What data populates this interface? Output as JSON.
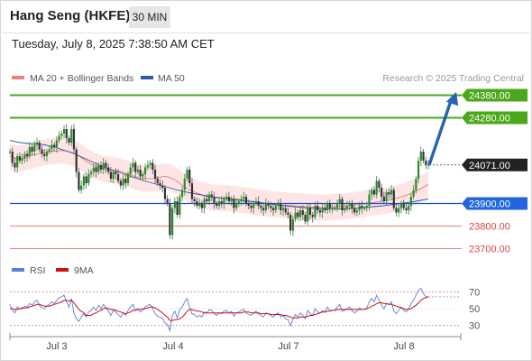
{
  "header": {
    "title": "Hang Seng (HKFE)",
    "interval": "30 MIN",
    "datetime": "Tuesday, July 8, 2025 7:38:50 AM CET"
  },
  "colors": {
    "resistance": "#4aa81a",
    "support": "#1b4fd6",
    "pivot_dark": "#222222",
    "minor_support": "#f08080",
    "bollinger_fill": "#fde0e0",
    "ma20": "#e07070",
    "ma50": "#2b5aa8",
    "arrow": "#2a64b0",
    "rsi": "#5a7fd8",
    "rsi_ma": "#cc1111",
    "candle": "#2a8a2a"
  },
  "chart_data": [
    {
      "type": "candlestick",
      "legend": [
        {
          "name": "MA 20 + Bollinger Bands",
          "color": "#f08080"
        },
        {
          "name": "MA 50",
          "color": "#2b5aa8"
        }
      ],
      "credit": "Research © 2025 Trading Central",
      "x_ticks": [
        "Jul 3",
        "Jul 4",
        "Jul 7",
        "Jul 8"
      ],
      "ylim": [
        23650,
        24450
      ],
      "levels": [
        {
          "value": 24380,
          "label": "24380.00",
          "kind": "resistance"
        },
        {
          "value": 24280,
          "label": "24280.00",
          "kind": "resistance"
        },
        {
          "value": 24071,
          "label": "24071.00",
          "kind": "pivot"
        },
        {
          "value": 23900,
          "label": "23900.00",
          "kind": "support"
        },
        {
          "value": 23800,
          "label": "23800.00",
          "kind": "minor_support"
        },
        {
          "value": 23700,
          "label": "23700.00",
          "kind": "minor_support"
        }
      ],
      "close": [
        24130,
        24080,
        24060,
        24110,
        24090,
        24100,
        24120,
        24110,
        24150,
        24130,
        24160,
        24170,
        24140,
        24120,
        24110,
        24130,
        24140,
        24160,
        24150,
        24180,
        24200,
        24210,
        24230,
        24190,
        24170,
        24230,
        24140,
        24040,
        23960,
        23980,
        24020,
        23990,
        24030,
        24040,
        24060,
        24040,
        24070,
        24050,
        24080,
        24060,
        24040,
        24010,
        24040,
        24030,
        24000,
        23980,
        24010,
        23990,
        24030,
        24060,
        24080,
        24040,
        24050,
        24020,
        24030,
        24060,
        24070,
        24080,
        24050,
        24010,
        23990,
        23980,
        23970,
        23920,
        23900,
        23760,
        23880,
        23910,
        23850,
        23930,
        23960,
        24010,
        24050,
        23990,
        23920,
        23910,
        23890,
        23900,
        23880,
        23920,
        23910,
        23940,
        23930,
        23900,
        23890,
        23910,
        23900,
        23920,
        23930,
        23910,
        23920,
        23880,
        23900,
        23910,
        23920,
        23930,
        23900,
        23890,
        23880,
        23900,
        23910,
        23890,
        23880,
        23870,
        23900,
        23890,
        23880,
        23870,
        23890,
        23900,
        23870,
        23880,
        23860,
        23850,
        23780,
        23830,
        23860,
        23840,
        23870,
        23850,
        23820,
        23880,
        23850,
        23840,
        23890,
        23870,
        23860,
        23880,
        23870,
        23900,
        23880,
        23880,
        23880,
        23900,
        23920,
        23870,
        23880,
        23890,
        23900,
        23880,
        23860,
        23870,
        23890,
        23880,
        23880,
        23890,
        23940,
        23960,
        23940,
        24000,
        23970,
        23930,
        23910,
        23950,
        23940,
        23960,
        23880,
        23860,
        23880,
        23900,
        23880,
        23870,
        23890,
        23930,
        23960,
        24010,
        24090,
        24130,
        24090,
        24070,
        24071
      ],
      "ma20": [
        24110,
        24105,
        24100,
        24100,
        24102,
        24105,
        24110,
        24115,
        24118,
        24122,
        24125,
        24128,
        24130,
        24132,
        24133,
        24135,
        24135,
        24134,
        24130,
        24125,
        24118,
        24110,
        24100,
        24090,
        24080,
        24072,
        24065,
        24060,
        24055,
        24052,
        24050,
        24048,
        24046,
        24044,
        24040,
        24035,
        24030,
        24025,
        24020,
        24015,
        24012,
        24010,
        24010,
        24010,
        24012,
        24015,
        24018,
        24020,
        24018,
        24012,
        24005,
        23995,
        23985,
        23975,
        23965,
        23958,
        23952,
        23945,
        23940,
        23935,
        23930,
        23928,
        23926,
        23925,
        23925,
        23924,
        23923,
        23922,
        23920,
        23918,
        23916,
        23914,
        23912,
        23910,
        23908,
        23906,
        23904,
        23902,
        23900,
        23898,
        23896,
        23895,
        23894,
        23893,
        23892,
        23891,
        23890,
        23889,
        23888,
        23887,
        23886,
        23885,
        23884,
        23883,
        23882,
        23882,
        23882,
        23883,
        23884,
        23885,
        23886,
        23887,
        23888,
        23890,
        23892,
        23894,
        23896,
        23898,
        23900,
        23902,
        23904,
        23906,
        23908,
        23910,
        23912,
        23915,
        23918,
        23922,
        23926,
        23930,
        23935,
        23940,
        23946,
        23952,
        23960,
        23968,
        23976,
        23985
      ],
      "ma50": [
        24180,
        24175,
        24170,
        24168,
        24166,
        24165,
        24163,
        24160,
        24155,
        24150,
        24143,
        24135,
        24128,
        24120,
        24110,
        24100,
        24090,
        24080,
        24070,
        24060,
        24052,
        24045,
        24038,
        24030,
        24022,
        24015,
        24008,
        24000,
        23994,
        23988,
        23982,
        23976,
        23970,
        23964,
        23958,
        23953,
        23948,
        23944,
        23940,
        23936,
        23932,
        23929,
        23926,
        23923,
        23920,
        23918,
        23915,
        23912,
        23910,
        23908,
        23905,
        23902,
        23899,
        23896,
        23893,
        23890,
        23888,
        23886,
        23884,
        23882,
        23880,
        23879,
        23878,
        23877,
        23876,
        23876,
        23876,
        23877,
        23878,
        23879,
        23880,
        23882,
        23884,
        23886,
        23888,
        23890,
        23893,
        23896,
        23899,
        23902,
        23905,
        23908,
        23912,
        23916,
        23920
      ]
    },
    {
      "type": "line",
      "legend": [
        {
          "name": "RSI",
          "color": "#5a7fd8"
        },
        {
          "name": "9MA",
          "color": "#cc1111"
        }
      ],
      "y_ticks": [
        70,
        50,
        30
      ],
      "ylim": [
        20,
        80
      ],
      "rsi": [
        55,
        48,
        45,
        52,
        50,
        51,
        53,
        52,
        56,
        54,
        58,
        60,
        54,
        51,
        50,
        53,
        55,
        58,
        56,
        60,
        63,
        64,
        66,
        58,
        52,
        62,
        45,
        38,
        35,
        40,
        44,
        40,
        46,
        48,
        52,
        48,
        54,
        50,
        55,
        51,
        47,
        42,
        48,
        46,
        43,
        40,
        45,
        42,
        48,
        52,
        55,
        48,
        50,
        46,
        48,
        52,
        54,
        55,
        50,
        44,
        41,
        40,
        39,
        33,
        31,
        24,
        42,
        47,
        39,
        49,
        52,
        58,
        62,
        52,
        44,
        43,
        40,
        42,
        40,
        46,
        45,
        49,
        48,
        44,
        42,
        45,
        44,
        47,
        48,
        45,
        47,
        41,
        45,
        46,
        48,
        49,
        45,
        43,
        42,
        45,
        47,
        44,
        42,
        40,
        45,
        44,
        42,
        40,
        43,
        45,
        40,
        42,
        38,
        37,
        30,
        38,
        43,
        40,
        45,
        42,
        38,
        48,
        44,
        42,
        50,
        46,
        45,
        48,
        46,
        52,
        48,
        48,
        48,
        52,
        55,
        47,
        48,
        50,
        52,
        48,
        45,
        47,
        51,
        49,
        49,
        51,
        58,
        62,
        58,
        66,
        60,
        54,
        50,
        56,
        55,
        58,
        47,
        44,
        48,
        52,
        48,
        46,
        50,
        56,
        60,
        66,
        72,
        74,
        68,
        64,
        64
      ],
      "rsi_ma": [
        50,
        50,
        49,
        49,
        50,
        50,
        51,
        51,
        52,
        53,
        54,
        55,
        55,
        54,
        53,
        53,
        53,
        54,
        55,
        56,
        57,
        58,
        60,
        60,
        59,
        60,
        57,
        53,
        49,
        47,
        45,
        42,
        42,
        42,
        44,
        45,
        47,
        48,
        50,
        51,
        50,
        49,
        49,
        48,
        47,
        46,
        45,
        44,
        45,
        46,
        48,
        48,
        49,
        49,
        50,
        50,
        51,
        52,
        52,
        51,
        49,
        47,
        45,
        42,
        40,
        36,
        36,
        37,
        37,
        38,
        40,
        43,
        47,
        49,
        49,
        48,
        47,
        47,
        46,
        45,
        45,
        45,
        45,
        45,
        45,
        45,
        45,
        45,
        45,
        45,
        45,
        45,
        45,
        45,
        45,
        46,
        46,
        46,
        45,
        45,
        45,
        45,
        44,
        44,
        44,
        44,
        43,
        43,
        43,
        43,
        43,
        42,
        42,
        41,
        40,
        39,
        39,
        39,
        40,
        40,
        40,
        41,
        42,
        42,
        43,
        44,
        45,
        46,
        46,
        47,
        47,
        48,
        48,
        49,
        49,
        49,
        49,
        49,
        49,
        49,
        49,
        49,
        49,
        49,
        49,
        50,
        51,
        53,
        54,
        56,
        57,
        57,
        56,
        56,
        55,
        55,
        54,
        53,
        52,
        51,
        50,
        49,
        49,
        50,
        52,
        54,
        57,
        60,
        62,
        63,
        64
      ]
    }
  ]
}
